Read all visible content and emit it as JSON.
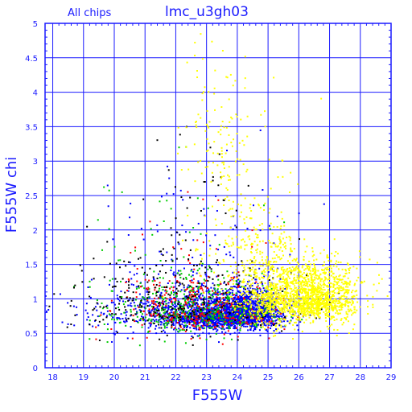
{
  "chart_data": {
    "type": "scatter",
    "title": "lmc_u3gh03",
    "subtitle": "All chips",
    "xlabel": "F555W",
    "ylabel": "F555W chi",
    "xlim": [
      17.75,
      29
    ],
    "ylim": [
      0,
      5
    ],
    "xticks": [
      "18",
      "19",
      "20",
      "21",
      "22",
      "23",
      "24",
      "25",
      "26",
      "27",
      "28",
      "29"
    ],
    "yticks": [
      "0",
      "0.5",
      "1",
      "1.5",
      "2",
      "2.5",
      "3",
      "3.5",
      "4",
      "4.5",
      "5"
    ],
    "grid": true,
    "legend": "none",
    "series": [
      {
        "color": "#0000ff",
        "clusters": [
          {
            "x": 23.5,
            "y": 0.75,
            "sx": 1.0,
            "sy": 0.12,
            "n": 1400
          },
          {
            "x": 24.3,
            "y": 0.8,
            "sx": 0.6,
            "sy": 0.15,
            "n": 700
          },
          {
            "x": 21.5,
            "y": 0.8,
            "sx": 1.3,
            "sy": 0.2,
            "n": 300
          },
          {
            "x": 23.0,
            "y": 1.5,
            "sx": 1.5,
            "sy": 0.6,
            "n": 120
          }
        ]
      },
      {
        "color": "#00cc00",
        "clusters": [
          {
            "x": 22.8,
            "y": 0.8,
            "sx": 1.3,
            "sy": 0.2,
            "n": 450
          },
          {
            "x": 21.8,
            "y": 1.3,
            "sx": 1.5,
            "sy": 0.5,
            "n": 90
          }
        ]
      },
      {
        "color": "#ff0000",
        "clusters": [
          {
            "x": 22.8,
            "y": 0.8,
            "sx": 1.3,
            "sy": 0.2,
            "n": 300
          },
          {
            "x": 22.0,
            "y": 1.3,
            "sx": 1.3,
            "sy": 0.5,
            "n": 60
          }
        ]
      },
      {
        "color": "#000000",
        "clusters": [
          {
            "x": 22.3,
            "y": 0.9,
            "sx": 1.8,
            "sy": 0.3,
            "n": 260
          },
          {
            "x": 22.2,
            "y": 1.6,
            "sx": 1.6,
            "sy": 0.7,
            "n": 80
          }
        ]
      },
      {
        "color": "#ffff00",
        "clusters": [
          {
            "x": 26.5,
            "y": 1.0,
            "sx": 0.75,
            "sy": 0.22,
            "n": 1300
          },
          {
            "x": 25.0,
            "y": 1.1,
            "sx": 0.5,
            "sy": 0.35,
            "n": 500
          },
          {
            "x": 24.2,
            "y": 1.9,
            "sx": 0.8,
            "sy": 0.8,
            "n": 200
          },
          {
            "x": 23.2,
            "y": 3.6,
            "sx": 0.5,
            "sy": 0.6,
            "n": 80
          }
        ]
      }
    ]
  }
}
